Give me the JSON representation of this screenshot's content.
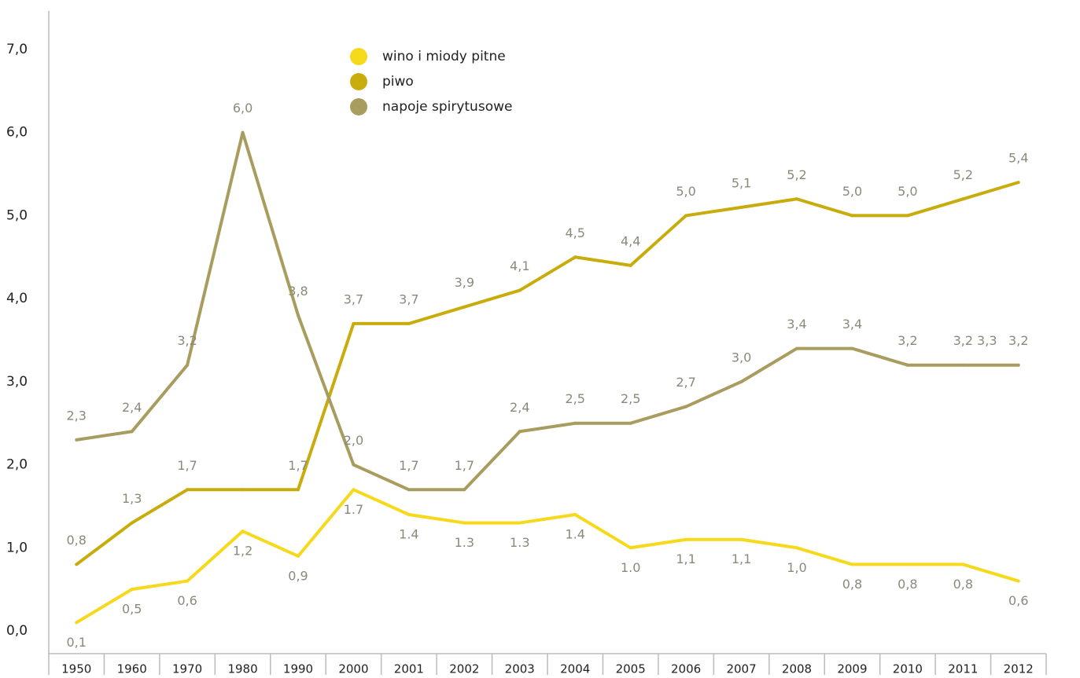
{
  "chart_data": {
    "type": "line",
    "categories": [
      "1950",
      "1960",
      "1970",
      "1980",
      "1990",
      "2000",
      "2001",
      "2002",
      "2003",
      "2004",
      "2005",
      "2006",
      "2007",
      "2008",
      "2009",
      "2010",
      "2011",
      "2012"
    ],
    "series": [
      {
        "name": "wino i miody pitne",
        "color": "#f6d91b",
        "values": [
          0.1,
          0.5,
          0.6,
          1.2,
          0.9,
          1.7,
          1.4,
          1.3,
          1.3,
          1.4,
          1.0,
          1.1,
          1.1,
          1.0,
          0.8,
          0.8,
          0.8,
          0.6
        ],
        "value_labels": [
          "0,1",
          "0,5",
          "0,6",
          "1,2",
          "0,9",
          "1.7",
          "1.4",
          "1.3",
          "1.3",
          "1.4",
          "1.0",
          "1,1",
          "1,1",
          "1,0",
          "0,8",
          "0,8",
          "0,8",
          "0,6"
        ]
      },
      {
        "name": "piwo",
        "color": "#c8ac0c",
        "values": [
          0.8,
          1.3,
          1.7,
          1.7,
          1.7,
          3.7,
          3.7,
          3.9,
          4.1,
          4.5,
          4.4,
          5.0,
          5.1,
          5.2,
          5.0,
          5.0,
          5.2,
          5.4
        ],
        "value_labels": [
          "0,8",
          "1,3",
          "1,7",
          null,
          "1,7",
          "3,7",
          "3,7",
          "3,9",
          "4,1",
          "4,5",
          "4,4",
          "5,0",
          "5,1",
          "5,2",
          "5,0",
          "5,0",
          "5,2",
          "5,4"
        ]
      },
      {
        "name": "napoje spirytusowe",
        "color": "#a89d5f",
        "values": [
          2.3,
          2.4,
          3.2,
          6.0,
          3.8,
          2.0,
          1.7,
          1.7,
          2.4,
          2.5,
          2.5,
          2.7,
          3.0,
          3.4,
          3.4,
          3.2,
          3.2,
          3.2
        ],
        "value_labels": [
          "2,3",
          "2,4",
          "3,2",
          "6,0",
          "3,8",
          "2,0",
          "1,7",
          "1,7",
          "2,4",
          "2,5",
          "2,5",
          "2,7",
          "3,0",
          "3,4",
          "3,4",
          "3,2",
          "3,2",
          "3,2"
        ]
      }
    ],
    "annotations": [
      "3,3"
    ],
    "ylim": [
      0,
      7
    ],
    "yticks": [
      {
        "value": 0,
        "label": "0,0"
      },
      {
        "value": 1,
        "label": "1,0"
      },
      {
        "value": 2,
        "label": "2,0"
      },
      {
        "value": 3,
        "label": "3,0"
      },
      {
        "value": 4,
        "label": "4,0"
      },
      {
        "value": 5,
        "label": "5,0"
      },
      {
        "value": 6,
        "label": "6,0"
      },
      {
        "value": 7,
        "label": "7,0"
      }
    ],
    "grid": false,
    "legend": "top-left"
  }
}
